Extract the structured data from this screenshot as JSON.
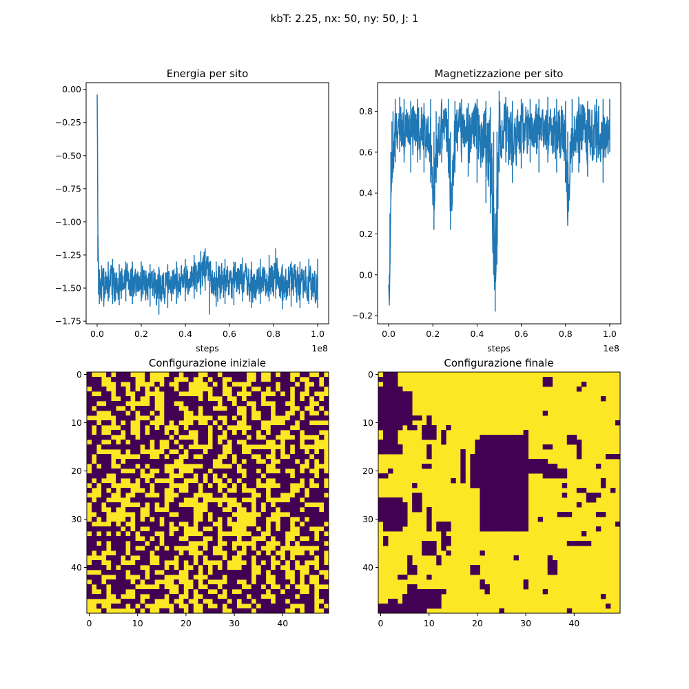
{
  "suptitle": "kbT: 2.25, nx: 50, ny: 50, J: 1",
  "colors": {
    "line": "#1f77b4",
    "spin_down": "#440154",
    "spin_up": "#fde725",
    "axis": "#000000"
  },
  "chart_data": [
    {
      "type": "line",
      "title": "Energia per sito",
      "xlabel": "steps",
      "ylabel": "",
      "x_offset_label": "1e8",
      "xlim": [
        -0.05,
        1.05
      ],
      "ylim": [
        -1.77,
        0.05
      ],
      "xticks": [
        0.0,
        0.2,
        0.4,
        0.6,
        0.8,
        1.0
      ],
      "xtick_labels": [
        "0.0",
        "0.2",
        "0.4",
        "0.6",
        "0.8",
        "1.0"
      ],
      "yticks": [
        0.0,
        -0.25,
        -0.5,
        -0.75,
        -1.0,
        -1.25,
        -1.5,
        -1.75
      ],
      "ytick_labels": [
        "0.00",
        "−0.25",
        "−0.50",
        "−0.75",
        "−1.00",
        "−1.25",
        "−1.50",
        "−1.75"
      ],
      "series": [
        {
          "x": [
            0.0,
            0.003,
            0.006,
            0.01,
            0.02,
            0.03,
            0.05,
            0.07,
            0.1,
            0.13,
            0.16,
            0.2,
            0.24,
            0.28,
            0.32,
            0.36,
            0.4,
            0.44,
            0.47,
            0.49,
            0.51,
            0.54,
            0.58,
            0.62,
            0.66,
            0.7,
            0.74,
            0.78,
            0.81,
            0.84,
            0.88,
            0.92,
            0.96,
            1.0
          ],
          "y": [
            -0.04,
            -1.15,
            -1.42,
            -1.5,
            -1.46,
            -1.48,
            -1.45,
            -1.47,
            -1.46,
            -1.45,
            -1.47,
            -1.46,
            -1.48,
            -1.5,
            -1.47,
            -1.46,
            -1.44,
            -1.42,
            -1.38,
            -1.35,
            -1.45,
            -1.47,
            -1.44,
            -1.46,
            -1.43,
            -1.47,
            -1.45,
            -1.44,
            -1.42,
            -1.48,
            -1.46,
            -1.47,
            -1.45,
            -1.46
          ],
          "band_low": [
            -0.04,
            -1.3,
            -1.55,
            -1.62,
            -1.6,
            -1.64,
            -1.6,
            -1.62,
            -1.63,
            -1.6,
            -1.62,
            -1.6,
            -1.64,
            -1.7,
            -1.65,
            -1.62,
            -1.6,
            -1.58,
            -1.55,
            -1.52,
            -1.7,
            -1.64,
            -1.62,
            -1.63,
            -1.6,
            -1.65,
            -1.62,
            -1.6,
            -1.58,
            -1.66,
            -1.64,
            -1.65,
            -1.62,
            -1.65
          ],
          "band_high": [
            -0.04,
            -1.1,
            -1.3,
            -1.36,
            -1.33,
            -1.35,
            -1.3,
            -1.28,
            -1.32,
            -1.3,
            -1.3,
            -1.3,
            -1.32,
            -1.34,
            -1.32,
            -1.3,
            -1.28,
            -1.25,
            -1.22,
            -1.2,
            -1.3,
            -1.3,
            -1.28,
            -1.3,
            -1.27,
            -1.3,
            -1.28,
            -1.25,
            -1.2,
            -1.32,
            -1.3,
            -1.3,
            -1.28,
            -1.28
          ]
        }
      ]
    },
    {
      "type": "line",
      "title": "Magnetizzazione per sito",
      "xlabel": "steps",
      "ylabel": "",
      "x_offset_label": "1e8",
      "xlim": [
        -0.05,
        1.05
      ],
      "ylim": [
        -0.24,
        0.94
      ],
      "xticks": [
        0.0,
        0.2,
        0.4,
        0.6,
        0.8,
        1.0
      ],
      "xtick_labels": [
        "0.0",
        "0.2",
        "0.4",
        "0.6",
        "0.8",
        "1.0"
      ],
      "yticks": [
        0.8,
        0.6,
        0.4,
        0.2,
        0.0,
        -0.2
      ],
      "ytick_labels": [
        "0.8",
        "0.6",
        "0.4",
        "0.2",
        "0.0",
        "−0.2"
      ],
      "series": [
        {
          "x": [
            0.0,
            0.003,
            0.006,
            0.01,
            0.015,
            0.02,
            0.03,
            0.05,
            0.07,
            0.1,
            0.13,
            0.16,
            0.19,
            0.205,
            0.215,
            0.24,
            0.27,
            0.28,
            0.3,
            0.33,
            0.36,
            0.4,
            0.44,
            0.46,
            0.475,
            0.482,
            0.49,
            0.5,
            0.53,
            0.56,
            0.6,
            0.64,
            0.68,
            0.72,
            0.76,
            0.8,
            0.81,
            0.83,
            0.86,
            0.9,
            0.94,
            0.97,
            1.0
          ],
          "y": [
            -0.05,
            -0.15,
            0.1,
            0.4,
            0.55,
            0.6,
            0.68,
            0.72,
            0.7,
            0.69,
            0.72,
            0.7,
            0.68,
            0.3,
            0.6,
            0.72,
            0.7,
            0.25,
            0.7,
            0.71,
            0.69,
            0.7,
            0.65,
            0.55,
            0.3,
            -0.18,
            0.3,
            0.7,
            0.72,
            0.68,
            0.7,
            0.71,
            0.69,
            0.72,
            0.7,
            0.68,
            0.3,
            0.7,
            0.72,
            0.69,
            0.7,
            0.68,
            0.72
          ],
          "band_low": [
            -0.05,
            -0.15,
            0.05,
            0.35,
            0.45,
            0.5,
            0.55,
            0.6,
            0.55,
            0.5,
            0.55,
            0.5,
            0.45,
            0.22,
            0.45,
            0.55,
            0.5,
            0.22,
            0.5,
            0.55,
            0.48,
            0.45,
            0.35,
            0.3,
            0.0,
            -0.18,
            0.05,
            0.5,
            0.55,
            0.45,
            0.52,
            0.55,
            0.5,
            0.55,
            0.5,
            0.45,
            0.24,
            0.5,
            0.5,
            0.48,
            0.55,
            0.45,
            0.6
          ],
          "band_high": [
            -0.05,
            0.0,
            0.3,
            0.6,
            0.75,
            0.8,
            0.86,
            0.87,
            0.86,
            0.85,
            0.86,
            0.84,
            0.86,
            0.7,
            0.8,
            0.86,
            0.86,
            0.7,
            0.85,
            0.86,
            0.84,
            0.86,
            0.85,
            0.82,
            0.7,
            0.3,
            0.7,
            0.9,
            0.87,
            0.85,
            0.86,
            0.86,
            0.86,
            0.87,
            0.86,
            0.85,
            0.7,
            0.86,
            0.87,
            0.85,
            0.86,
            0.86,
            0.86
          ]
        }
      ]
    },
    {
      "type": "heatmap",
      "title": "Configurazione iniziale",
      "xlabel": "",
      "ylabel": "",
      "nx": 50,
      "ny": 50,
      "xticks": [
        0,
        10,
        20,
        30,
        40
      ],
      "yticks": [
        0,
        10,
        20,
        30,
        40
      ],
      "pattern": "random",
      "seed": 7
    },
    {
      "type": "heatmap",
      "title": "Configurazione finale",
      "xlabel": "",
      "ylabel": "",
      "nx": 50,
      "ny": 50,
      "xticks": [
        0,
        10,
        20,
        30,
        40
      ],
      "yticks": [
        0,
        10,
        20,
        30,
        40
      ],
      "pattern": "domains",
      "down_rects": [
        [
          1,
          0,
          1,
          1
        ],
        [
          2,
          1,
          1,
          0
        ],
        [
          0,
          1,
          13,
          3
        ],
        [
          3,
          0,
          11,
          4
        ],
        [
          4,
          5,
          10,
          6
        ],
        [
          14,
          0,
          16,
          3
        ],
        [
          15,
          2,
          16,
          4
        ],
        [
          26,
          0,
          28,
          3
        ],
        [
          21,
          0,
          21,
          1
        ],
        [
          8,
          2,
          10,
          3
        ],
        [
          9,
          7,
          9,
          8
        ],
        [
          11,
          6,
          11,
          7
        ],
        [
          11,
          9,
          13,
          11
        ],
        [
          12,
          13,
          14,
          13
        ],
        [
          15,
          10,
          17,
          10
        ],
        [
          16,
          17,
          22,
          17
        ],
        [
          13,
          21,
          32,
          30
        ],
        [
          14,
          20,
          19,
          21
        ],
        [
          17,
          19,
          23,
          20
        ],
        [
          18,
          27,
          20,
          34
        ],
        [
          19,
          32,
          20,
          36
        ],
        [
          20,
          34,
          21,
          38
        ],
        [
          12,
          30,
          13,
          30
        ],
        [
          16,
          27,
          17,
          28
        ],
        [
          15,
          34,
          15,
          35
        ],
        [
          26,
          0,
          30,
          4
        ],
        [
          28,
          1,
          32,
          4
        ],
        [
          27,
          4,
          31,
          5
        ],
        [
          25,
          7,
          28,
          8
        ],
        [
          28,
          10,
          32,
          10
        ],
        [
          31,
          12,
          32,
          14
        ],
        [
          33,
          13,
          36,
          13
        ],
        [
          34,
          14,
          35,
          14
        ],
        [
          35,
          9,
          37,
          11
        ],
        [
          29,
          26,
          29,
          27
        ],
        [
          30,
          29,
          30,
          29
        ],
        [
          30,
          33,
          30,
          33
        ],
        [
          29,
          37,
          29,
          39
        ],
        [
          25,
          38,
          25,
          38
        ],
        [
          25,
          43,
          25,
          45
        ],
        [
          24,
          48,
          24,
          48
        ],
        [
          31,
          49,
          31,
          49
        ],
        [
          35,
          39,
          35,
          43
        ],
        [
          33,
          42,
          33,
          42
        ],
        [
          32,
          45,
          32,
          45
        ],
        [
          34,
          1,
          35,
          1
        ],
        [
          38,
          6,
          40,
          6
        ],
        [
          36,
          11,
          36,
          11
        ],
        [
          40,
          6,
          41,
          7
        ],
        [
          37,
          14,
          37,
          14
        ],
        [
          38,
          12,
          39,
          12
        ],
        [
          37,
          21,
          37,
          21
        ],
        [
          38,
          28,
          38,
          28
        ],
        [
          38,
          35,
          39,
          35
        ],
        [
          40,
          19,
          41,
          20
        ],
        [
          39,
          35,
          41,
          36
        ],
        [
          42,
          4,
          42,
          5
        ],
        [
          42,
          10,
          42,
          10
        ],
        [
          43,
          21,
          44,
          21
        ],
        [
          44,
          22,
          45,
          22
        ],
        [
          43,
          30,
          44,
          30
        ],
        [
          45,
          12,
          45,
          13
        ],
        [
          44,
          6,
          45,
          7
        ],
        [
          45,
          7,
          48,
          12
        ],
        [
          46,
          5,
          49,
          9
        ],
        [
          48,
          0,
          49,
          4
        ],
        [
          47,
          2,
          49,
          3
        ],
        [
          49,
          25,
          49,
          25
        ],
        [
          49,
          39,
          49,
          39
        ],
        [
          46,
          46,
          46,
          46
        ],
        [
          48,
          47,
          48,
          47
        ],
        [
          45,
          34,
          45,
          34
        ],
        [
          28,
          0,
          30,
          2
        ],
        [
          26,
          43,
          26,
          44
        ],
        [
          29,
          45,
          29,
          46
        ],
        [
          5,
          46,
          5,
          46
        ],
        [
          1,
          34,
          2,
          35
        ],
        [
          2,
          42,
          2,
          42
        ],
        [
          3,
          41,
          3,
          41
        ],
        [
          8,
          34,
          8,
          34
        ],
        [
          13,
          39,
          14,
          40
        ],
        [
          14,
          41,
          14,
          41
        ],
        [
          15,
          41,
          17,
          41
        ],
        [
          17,
          47,
          17,
          49
        ],
        [
          10,
          49,
          10,
          49
        ],
        [
          19,
          45,
          19,
          45
        ],
        [
          22,
          46,
          23,
          46
        ],
        [
          24,
          41,
          24,
          42
        ],
        [
          23,
          38,
          23,
          38
        ],
        [
          27,
          41,
          27,
          41
        ],
        [
          11,
          14,
          11,
          14
        ],
        [
          9,
          10,
          10,
          10
        ],
        [
          20,
          2,
          20,
          2
        ],
        [
          19,
          9,
          19,
          10
        ],
        [
          22,
          15,
          22,
          15
        ],
        [
          23,
          7,
          23,
          7
        ],
        [
          24,
          23,
          24,
          23
        ]
      ]
    }
  ]
}
